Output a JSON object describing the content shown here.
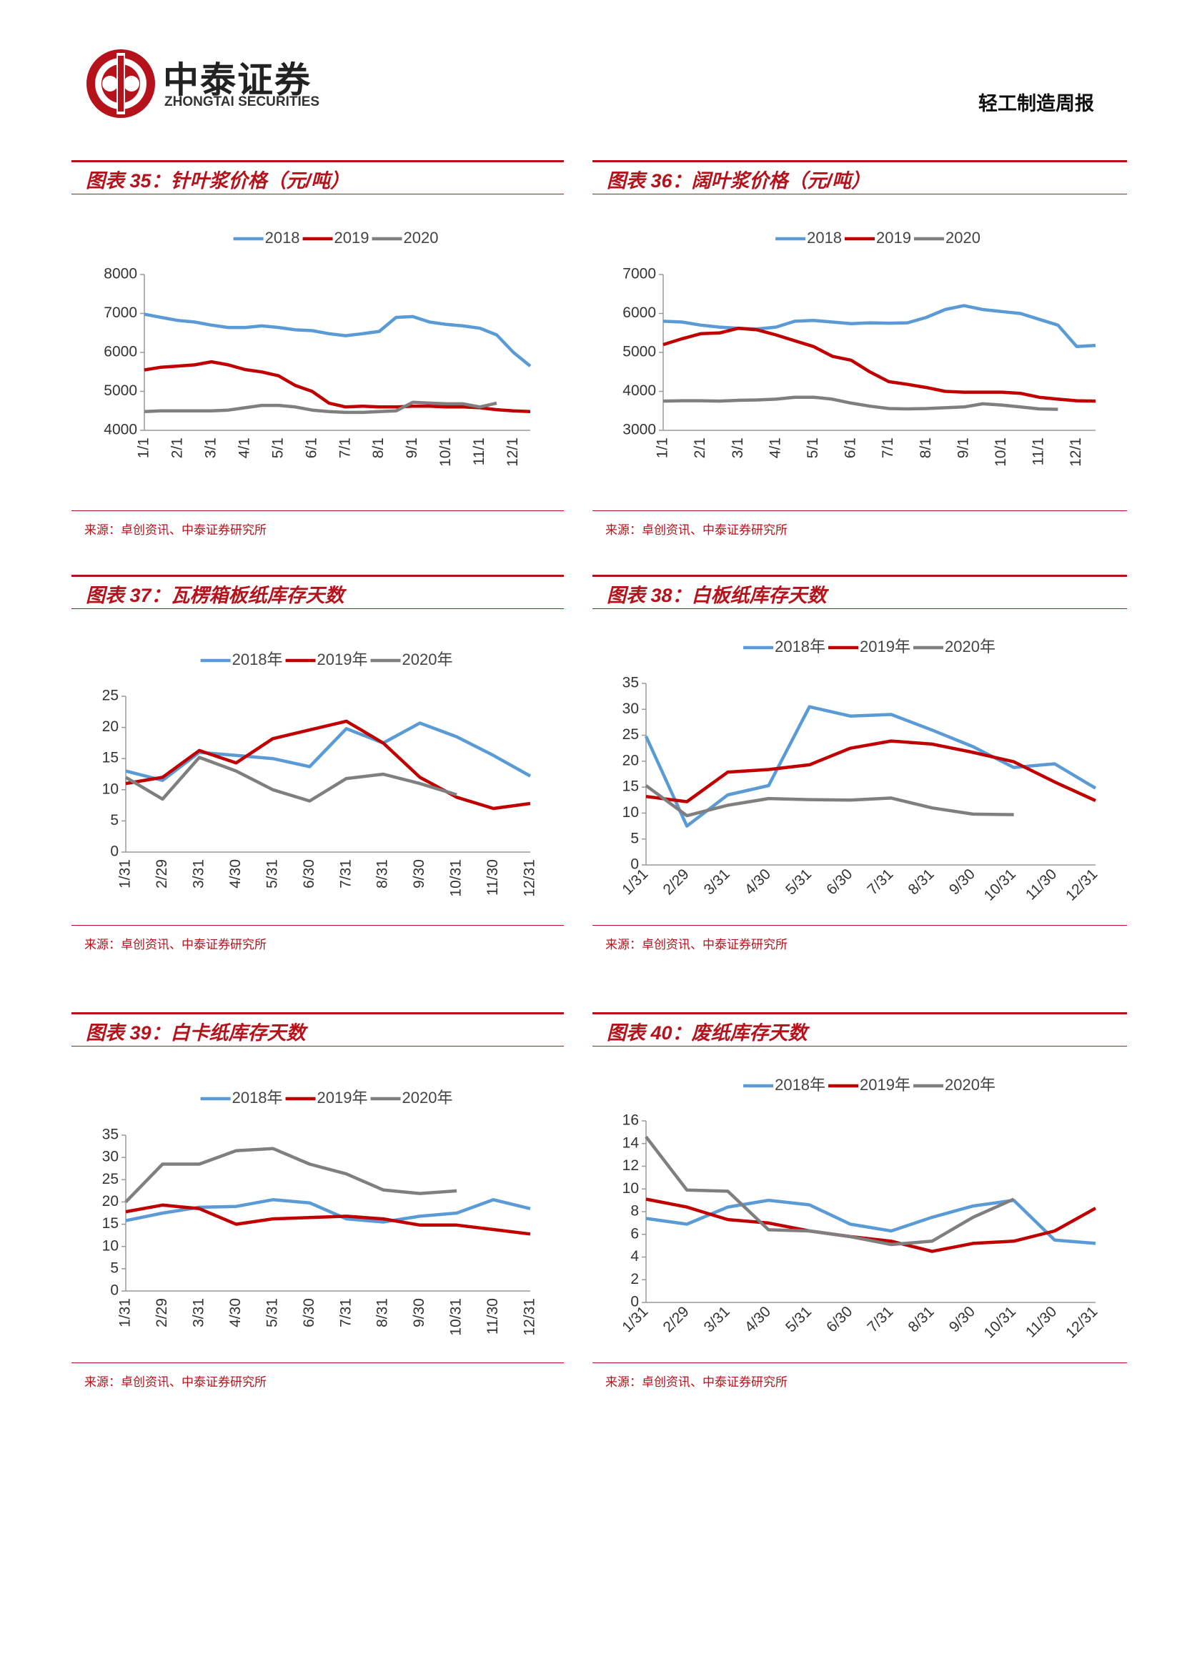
{
  "header": {
    "logo_text": "中泰证券",
    "logo_subtext": "ZHONGTAI SECURITIES",
    "report_name": "轻工制造周报"
  },
  "chart_data": [
    {
      "type": "line",
      "title": "图表 35：针叶浆价格（元/吨）",
      "source": "来源：卓创资讯、中泰证券研究所",
      "categories": [
        "1/1",
        null,
        "2/1",
        null,
        "3/1",
        null,
        "4/1",
        null,
        "5/1",
        null,
        "6/1",
        null,
        "7/1",
        null,
        "8/1",
        null,
        "9/1",
        null,
        "10/1",
        null,
        "11/1",
        null,
        "12/1",
        null
      ],
      "series": [
        {
          "name": "2018",
          "color": "#5b9bd5",
          "values": [
            6980,
            6900,
            6820,
            6780,
            6700,
            6640,
            6640,
            6680,
            6640,
            6580,
            6560,
            6480,
            6430,
            6480,
            6540,
            6900,
            6920,
            6780,
            6720,
            6680,
            6620,
            6450,
            6000,
            5650
          ]
        },
        {
          "name": "2019",
          "color": "#c00000",
          "values": [
            5550,
            5620,
            5650,
            5680,
            5760,
            5680,
            5560,
            5500,
            5400,
            5150,
            5000,
            4700,
            4600,
            4620,
            4600,
            4600,
            4620,
            4620,
            4600,
            4600,
            4580,
            4530,
            4500,
            4480
          ]
        },
        {
          "name": "2020",
          "color": "#7f7f7f",
          "values": [
            4480,
            4500,
            4500,
            4500,
            4500,
            4520,
            4580,
            4640,
            4640,
            4600,
            4520,
            4480,
            4460,
            4460,
            4480,
            4500,
            4720,
            4700,
            4680,
            4680,
            4600,
            4700,
            null,
            null
          ]
        }
      ],
      "ylim": [
        4000,
        8000
      ],
      "yticks": [
        4000,
        5000,
        6000,
        7000,
        8000
      ],
      "legend": "top"
    },
    {
      "type": "line",
      "title": "图表 36：阔叶浆价格（元/吨）",
      "source": "来源：卓创资讯、中泰证券研究所",
      "categories": [
        "1/1",
        null,
        "2/1",
        null,
        "3/1",
        null,
        "4/1",
        null,
        "5/1",
        null,
        "6/1",
        null,
        "7/1",
        null,
        "8/1",
        null,
        "9/1",
        null,
        "10/1",
        null,
        "11/1",
        null,
        "12/1",
        null
      ],
      "series": [
        {
          "name": "2018",
          "color": "#5b9bd5",
          "values": [
            5800,
            5780,
            5700,
            5650,
            5620,
            5600,
            5650,
            5800,
            5820,
            5780,
            5740,
            5760,
            5750,
            5760,
            5900,
            6100,
            6200,
            6100,
            6050,
            6000,
            5850,
            5700,
            5150,
            5180
          ]
        },
        {
          "name": "2019",
          "color": "#c00000",
          "values": [
            5200,
            5350,
            5480,
            5500,
            5620,
            5580,
            5450,
            5300,
            5150,
            4900,
            4800,
            4500,
            4250,
            4180,
            4100,
            4000,
            3980,
            3980,
            3980,
            3950,
            3850,
            3800,
            3760,
            3750
          ]
        },
        {
          "name": "2020",
          "color": "#7f7f7f",
          "values": [
            3750,
            3760,
            3760,
            3750,
            3770,
            3780,
            3800,
            3850,
            3850,
            3800,
            3700,
            3620,
            3560,
            3550,
            3560,
            3580,
            3600,
            3680,
            3650,
            3600,
            3550,
            3540,
            null,
            null
          ]
        }
      ],
      "ylim": [
        3000,
        7000
      ],
      "yticks": [
        3000,
        4000,
        5000,
        6000,
        7000
      ],
      "legend": "top"
    },
    {
      "type": "line",
      "title": "图表 37：瓦楞箱板纸库存天数",
      "source": "来源：卓创资讯、中泰证券研究所",
      "categories": [
        "1/31",
        "2/29",
        "3/31",
        "4/30",
        "5/31",
        "6/30",
        "7/31",
        "8/31",
        "9/30",
        "10/31",
        "11/30",
        "12/31"
      ],
      "series": [
        {
          "name": "2018年",
          "color": "#5b9bd5",
          "values": [
            13,
            11.5,
            16,
            15.5,
            15,
            13.7,
            19.8,
            17.5,
            20.7,
            18.5,
            15.5,
            12.2
          ]
        },
        {
          "name": "2019年",
          "color": "#c00000",
          "values": [
            11,
            12,
            16.3,
            14.3,
            18.2,
            19.6,
            21,
            17.5,
            12,
            8.8,
            7,
            7.8
          ]
        },
        {
          "name": "2020年",
          "color": "#7f7f7f",
          "values": [
            12,
            8.5,
            15.2,
            13,
            10,
            8.2,
            11.8,
            12.5,
            11,
            9.2,
            null,
            null
          ]
        }
      ],
      "ylim": [
        0,
        25
      ],
      "yticks": [
        0,
        5,
        10,
        15,
        20,
        25
      ],
      "legend": "top"
    },
    {
      "type": "line",
      "title": "图表 38：白板纸库存天数",
      "source": "来源：卓创资讯、中泰证券研究所",
      "categories": [
        "1/31",
        "2/29",
        "3/31",
        "4/30",
        "5/31",
        "6/30",
        "7/31",
        "8/31",
        "9/30",
        "10/31",
        "11/30",
        "12/31"
      ],
      "series": [
        {
          "name": "2018年",
          "color": "#5b9bd5",
          "values": [
            24.8,
            7.5,
            13.5,
            15.3,
            30.5,
            28.7,
            29,
            26,
            22.8,
            18.8,
            19.5,
            14.8
          ]
        },
        {
          "name": "2019年",
          "color": "#c00000",
          "values": [
            13.2,
            12.2,
            17.9,
            18.4,
            19.3,
            22.5,
            23.9,
            23.3,
            21.7,
            19.9,
            16,
            12.4
          ]
        },
        {
          "name": "2020年",
          "color": "#7f7f7f",
          "values": [
            15.3,
            9.5,
            11.5,
            12.8,
            12.6,
            12.5,
            12.9,
            11,
            9.8,
            9.7,
            null,
            null
          ]
        }
      ],
      "ylim": [
        0,
        35
      ],
      "yticks": [
        0,
        5,
        10,
        15,
        20,
        25,
        30,
        35
      ],
      "legend": "top"
    },
    {
      "type": "line",
      "title": "图表 39：白卡纸库存天数",
      "source": "来源：卓创资讯、中泰证券研究所",
      "categories": [
        "1/31",
        "2/29",
        "3/31",
        "4/30",
        "5/31",
        "6/30",
        "7/31",
        "8/31",
        "9/30",
        "10/31",
        "11/30",
        "12/31"
      ],
      "series": [
        {
          "name": "2018年",
          "color": "#5b9bd5",
          "values": [
            15.8,
            17.5,
            18.8,
            19,
            20.5,
            19.8,
            16.2,
            15.5,
            16.8,
            17.5,
            20.5,
            18.5
          ]
        },
        {
          "name": "2019年",
          "color": "#c00000",
          "values": [
            17.8,
            19.3,
            18.5,
            15,
            16.2,
            16.5,
            16.8,
            16.2,
            14.8,
            14.8,
            13.8,
            12.8
          ]
        },
        {
          "name": "2020年",
          "color": "#7f7f7f",
          "values": [
            20,
            28.5,
            28.5,
            31.5,
            32,
            28.5,
            26.3,
            22.7,
            21.9,
            22.5,
            null,
            null
          ]
        }
      ],
      "ylim": [
        0,
        35
      ],
      "yticks": [
        0,
        5,
        10,
        15,
        20,
        25,
        30,
        35
      ],
      "legend": "top"
    },
    {
      "type": "line",
      "title": "图表 40：废纸库存天数",
      "source": "来源：卓创资讯、中泰证券研究所",
      "categories": [
        "1/31",
        "2/29",
        "3/31",
        "4/30",
        "5/31",
        "6/30",
        "7/31",
        "8/31",
        "9/30",
        "10/31",
        "11/30",
        "12/31"
      ],
      "series": [
        {
          "name": "2018年",
          "color": "#5b9bd5",
          "values": [
            7.4,
            6.9,
            8.4,
            9,
            8.6,
            6.9,
            6.3,
            7.5,
            8.5,
            9,
            5.5,
            5.2
          ]
        },
        {
          "name": "2019年",
          "color": "#c00000",
          "values": [
            9.1,
            8.4,
            7.3,
            7,
            6.3,
            5.8,
            5.4,
            4.5,
            5.2,
            5.4,
            6.3,
            8.3
          ]
        },
        {
          "name": "2020年",
          "color": "#7f7f7f",
          "values": [
            14.6,
            9.9,
            9.8,
            6.4,
            6.3,
            5.8,
            5.1,
            5.4,
            7.5,
            9.1,
            null,
            null
          ]
        }
      ],
      "ylim": [
        0,
        16
      ],
      "yticks": [
        0,
        2,
        4,
        6,
        8,
        10,
        12,
        14,
        16
      ],
      "legend": "top"
    }
  ]
}
